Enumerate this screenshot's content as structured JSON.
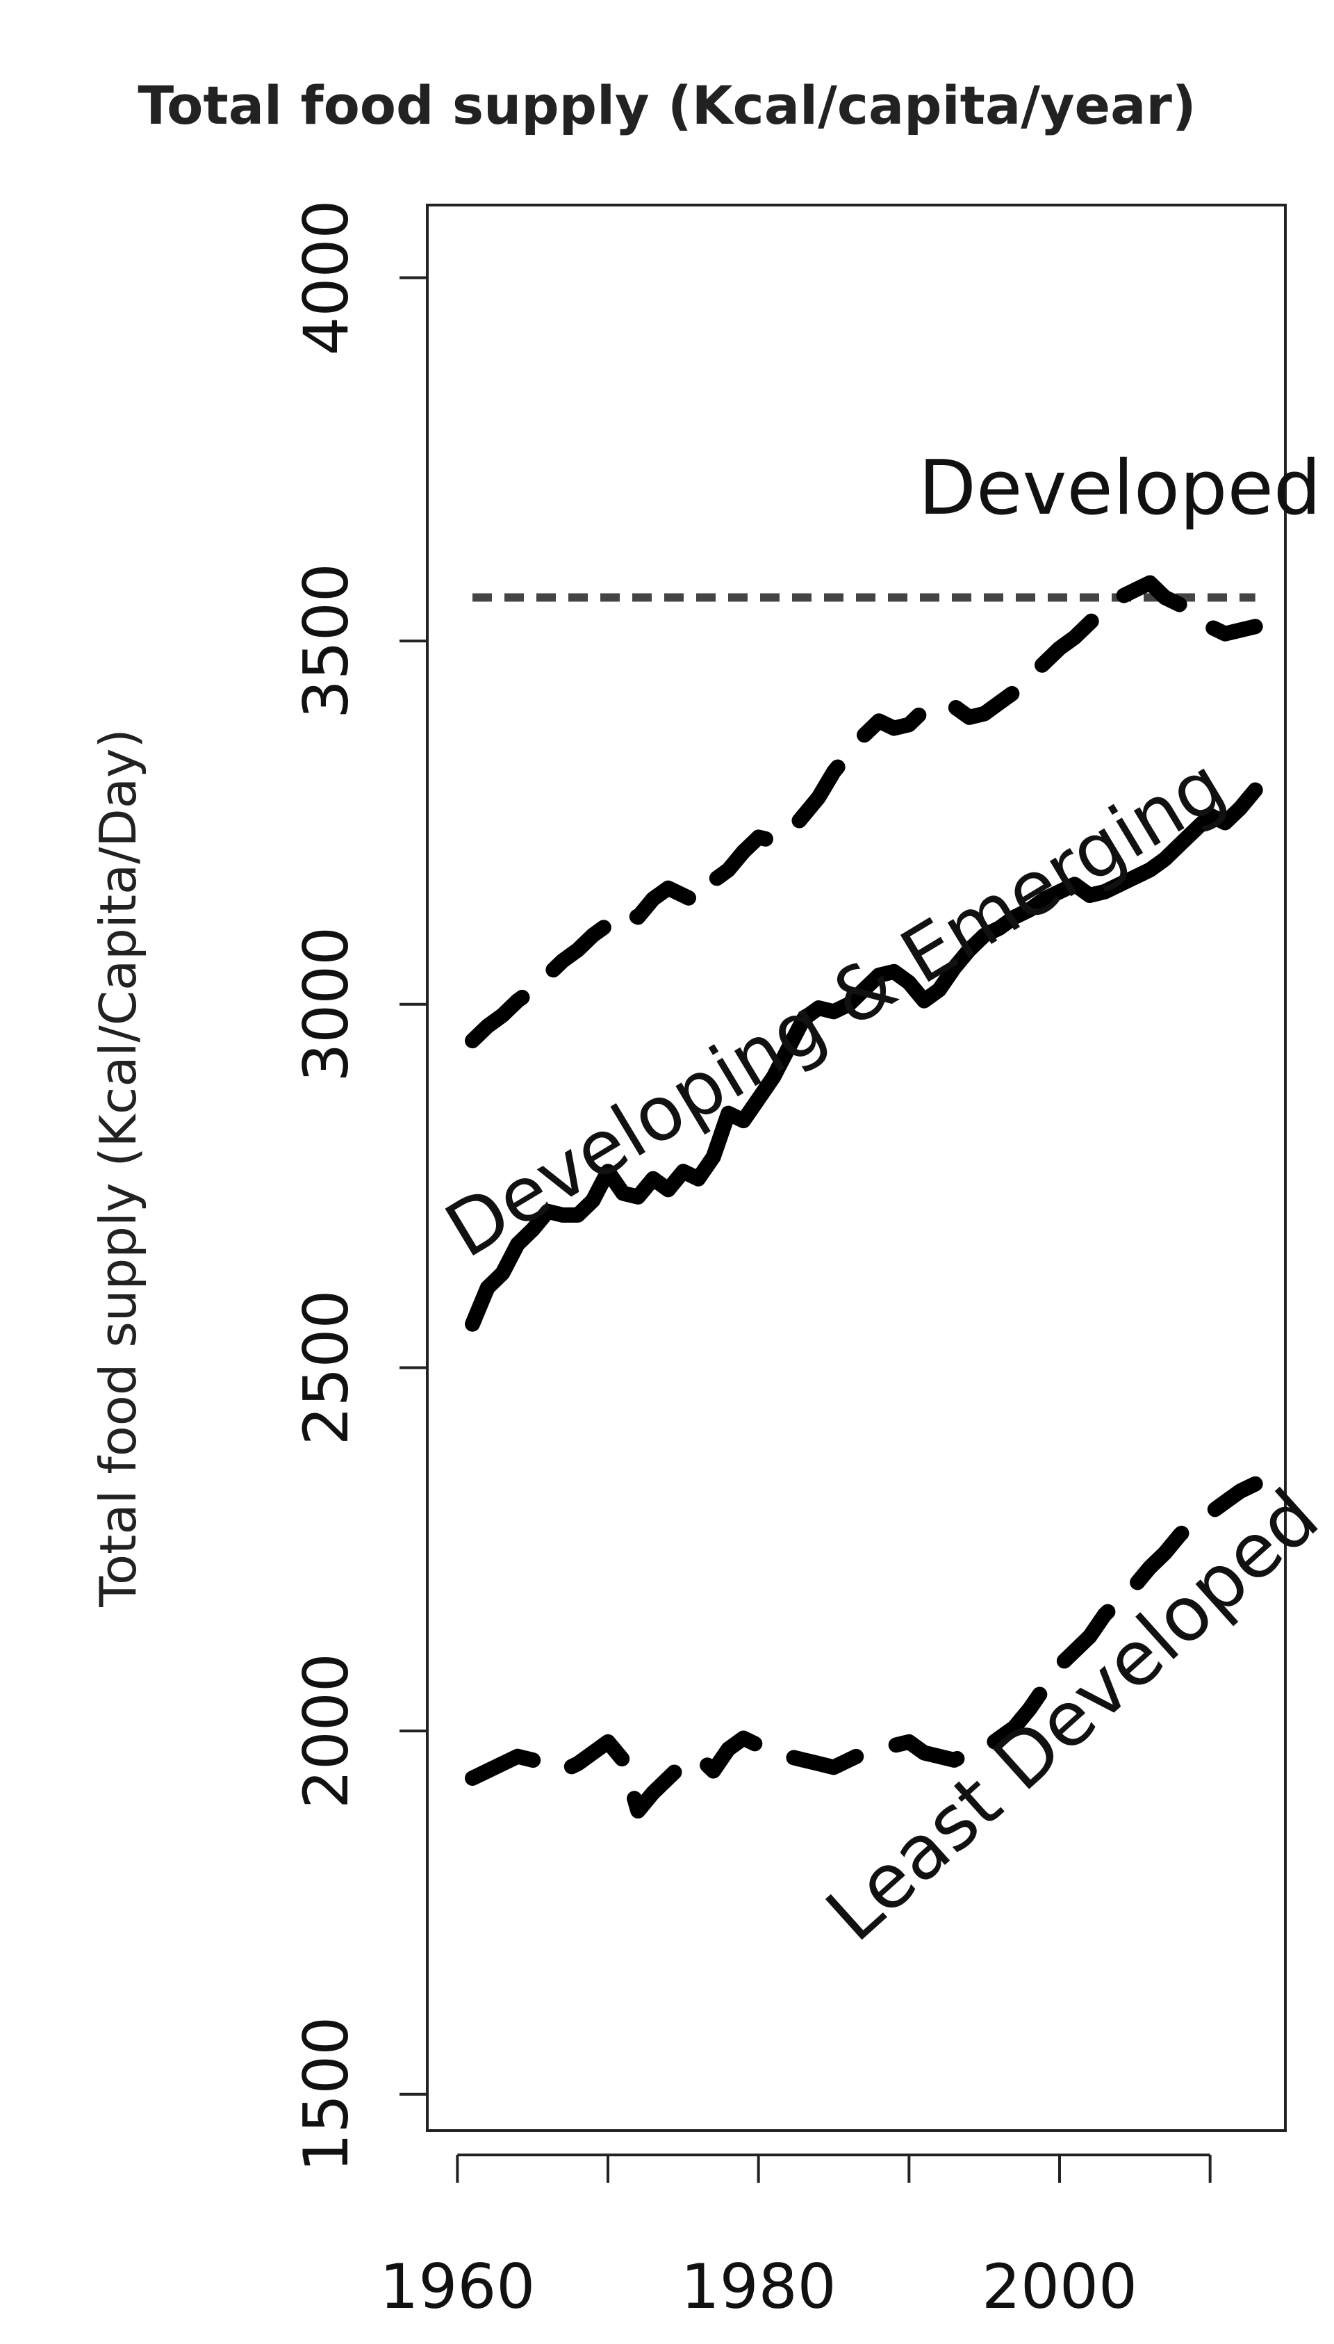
{
  "chart_data": {
    "type": "line",
    "title": "Total food supply (Kcal/capita/year)",
    "xlabel": "",
    "ylabel": "Total food supply (Kcal/Capita/Day)",
    "xlim": [
      1958,
      2015
    ],
    "ylim": [
      1450,
      4100
    ],
    "x_ticks": [
      1960,
      1970,
      1980,
      1990,
      2000,
      2010
    ],
    "x_tick_labels": [
      "1960",
      "",
      "1980",
      "",
      "2000",
      ""
    ],
    "y_ticks": [
      1500,
      2000,
      2500,
      3000,
      3500,
      4000
    ],
    "y_tick_labels": [
      "1500",
      "2000",
      "2500",
      "3000",
      "3500",
      "4000"
    ],
    "grid": false,
    "annotations": [
      {
        "text": "Developed",
        "x": 2004,
        "y": 3675,
        "rotation": 0
      },
      {
        "text": "Developing & Emerging",
        "x": 1986,
        "y": 2965,
        "rotation": -31
      },
      {
        "text": "Least Developed",
        "x": 2002,
        "y": 1995,
        "rotation": -42
      }
    ],
    "series": [
      {
        "style": "dotted",
        "x": [
          1961,
          2013
        ],
        "y": [
          3560,
          3560
        ]
      },
      {
        "style": "dashed",
        "x": [
          1961,
          1962,
          1963,
          1964,
          1965,
          1966,
          1967,
          1968,
          1969,
          1970,
          1971,
          1972,
          1973,
          1974,
          1975,
          1976,
          1977,
          1978,
          1979,
          1980,
          1981,
          1982,
          1983,
          1984,
          1985,
          1986,
          1987,
          1988,
          1989,
          1990,
          1991,
          1992,
          1993,
          1994,
          1995,
          1996,
          1997,
          1998,
          1999,
          2000,
          2001,
          2002,
          2003,
          2004,
          2005,
          2006,
          2007,
          2008,
          2009,
          2010,
          2011,
          2012,
          2013
        ],
        "y": [
          2950,
          2970,
          2985,
          3005,
          3020,
          3040,
          3060,
          3075,
          3095,
          3110,
          3130,
          3120,
          3145,
          3160,
          3150,
          3140,
          3170,
          3185,
          3210,
          3230,
          3225,
          3235,
          3260,
          3285,
          3320,
          3345,
          3370,
          3390,
          3380,
          3385,
          3405,
          3400,
          3410,
          3395,
          3400,
          3415,
          3430,
          3450,
          3470,
          3490,
          3505,
          3525,
          3545,
          3560,
          3570,
          3580,
          3560,
          3550,
          3540,
          3520,
          3510,
          3515,
          3520
        ]
      },
      {
        "style": "solid",
        "x": [
          1961,
          1962,
          1963,
          1964,
          1965,
          1966,
          1967,
          1968,
          1969,
          1970,
          1971,
          1972,
          1973,
          1974,
          1975,
          1976,
          1977,
          1978,
          1979,
          1980,
          1981,
          1982,
          1983,
          1984,
          1985,
          1986,
          1987,
          1988,
          1989,
          1990,
          1991,
          1992,
          1993,
          1994,
          1995,
          1996,
          1997,
          1998,
          1999,
          2000,
          2001,
          2002,
          2003,
          2004,
          2005,
          2006,
          2007,
          2008,
          2009,
          2010,
          2011,
          2012,
          2013
        ],
        "y": [
          2560,
          2610,
          2630,
          2670,
          2690,
          2715,
          2710,
          2710,
          2730,
          2770,
          2740,
          2735,
          2760,
          2745,
          2770,
          2760,
          2790,
          2850,
          2840,
          2870,
          2900,
          2940,
          2980,
          2995,
          2990,
          3000,
          3020,
          3040,
          3045,
          3030,
          3005,
          3020,
          3050,
          3075,
          3095,
          3105,
          3120,
          3130,
          3145,
          3155,
          3165,
          3150,
          3155,
          3165,
          3175,
          3185,
          3200,
          3220,
          3240,
          3260,
          3250,
          3270,
          3295
        ]
      },
      {
        "style": "dashed",
        "x": [
          1961,
          1962,
          1963,
          1964,
          1965,
          1966,
          1967,
          1968,
          1969,
          1970,
          1971,
          1972,
          1973,
          1974,
          1975,
          1976,
          1977,
          1978,
          1979,
          1980,
          1981,
          1982,
          1983,
          1984,
          1985,
          1986,
          1987,
          1988,
          1989,
          1990,
          1991,
          1992,
          1993,
          1994,
          1995,
          1996,
          1997,
          1998,
          1999,
          2000,
          2001,
          2002,
          2003,
          2004,
          2005,
          2006,
          2007,
          2008,
          2009,
          2010,
          2011,
          2012,
          2013
        ],
        "y": [
          1935,
          1945,
          1955,
          1965,
          1960,
          1950,
          1945,
          1955,
          1970,
          1985,
          1960,
          1890,
          1915,
          1935,
          1955,
          1965,
          1945,
          1975,
          1990,
          1980,
          1970,
          1965,
          1960,
          1955,
          1950,
          1960,
          1970,
          1975,
          1980,
          1985,
          1970,
          1965,
          1960,
          1970,
          1975,
          1990,
          2005,
          2030,
          2060,
          2090,
          2110,
          2130,
          2160,
          2180,
          2200,
          2225,
          2245,
          2270,
          2290,
          2300,
          2315,
          2330,
          2340
        ]
      }
    ]
  }
}
